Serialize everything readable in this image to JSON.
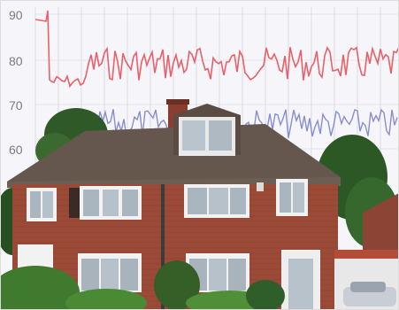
{
  "axis": {
    "tick_labels": [
      "90",
      "80",
      "70",
      "60"
    ]
  },
  "colors": {
    "sky": "#f7f7fb",
    "grid": "#d8d8e2",
    "red_trace": "#e8505a",
    "blue_trace": "#6d73c6",
    "roof": "#6a5a50",
    "brick": "#9a4a36",
    "brick_dark": "#7d3a2a",
    "window_frame": "#f4f4f4",
    "window_glass": "#b8c4cc",
    "tree": "#2f5e2a",
    "hedge": "#3f7a2e"
  },
  "scene": {
    "building": "semi-detached-brick-house",
    "overlay": "noise-level-trace-chart"
  }
}
